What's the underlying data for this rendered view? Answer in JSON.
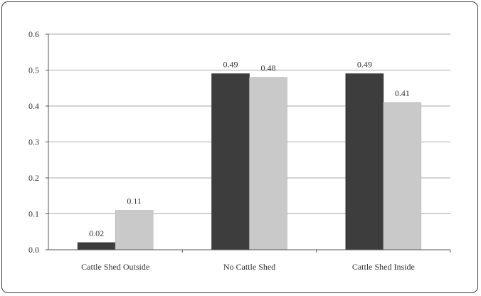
{
  "chart_data": {
    "type": "bar",
    "categories": [
      "Cattle Shed Outside",
      "No Cattle Shed",
      "Cattle Shed Inside"
    ],
    "series": [
      {
        "values": [
          0.02,
          0.49,
          0.49
        ],
        "labels": [
          "0.02",
          "0.49",
          "0.49"
        ],
        "color": "#3d3d3d"
      },
      {
        "values": [
          0.11,
          0.48,
          0.41
        ],
        "labels": [
          "0.11",
          "0.48",
          "0.41"
        ],
        "color": "#c9c9c9"
      }
    ],
    "y_ticks": [
      0.0,
      0.1,
      0.2,
      0.3,
      0.4,
      0.5,
      0.6
    ],
    "y_tick_labels": [
      "0.0",
      "0.1",
      "0.2",
      "0.3",
      "0.4",
      "0.5",
      "0.6"
    ],
    "ylim": [
      0,
      0.6
    ],
    "grid": true,
    "legend": "none"
  }
}
